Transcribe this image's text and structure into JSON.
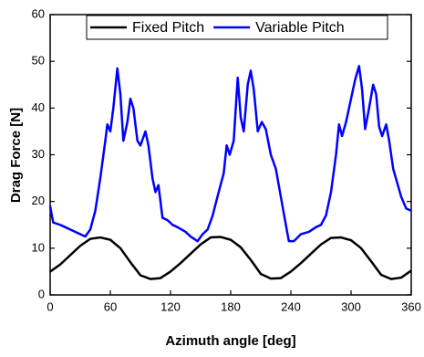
{
  "chart_data": {
    "type": "line",
    "x_label": "Azimuth angle [deg]",
    "y_label": "Drag Force [N]",
    "xlim": [
      0,
      360
    ],
    "xticks": [
      0,
      60,
      120,
      180,
      240,
      300,
      360
    ],
    "ylim": [
      0,
      60
    ],
    "yticks": [
      0,
      10,
      20,
      30,
      40,
      50,
      60
    ],
    "grid": false,
    "legend": "upper right",
    "series": [
      {
        "name": "Fixed Pitch",
        "color": "#000000",
        "x": [
          0,
          10,
          20,
          30,
          40,
          50,
          60,
          70,
          80,
          90,
          100,
          110,
          120,
          130,
          140,
          150,
          160,
          170,
          180,
          190,
          200,
          210,
          220,
          230,
          240,
          250,
          260,
          270,
          280,
          290,
          300,
          310,
          320,
          330,
          340,
          350,
          360
        ],
        "values": [
          5,
          6.5,
          8.5,
          10.5,
          12,
          12.3,
          11.8,
          10,
          7,
          4.2,
          3.4,
          3.6,
          5,
          6.8,
          8.8,
          10.8,
          12.3,
          12.4,
          11.8,
          10.2,
          7.5,
          4.5,
          3.5,
          3.6,
          5,
          6.8,
          8.8,
          10.8,
          12.2,
          12.3,
          11.7,
          10,
          7.2,
          4.3,
          3.4,
          3.7,
          5.2
        ]
      },
      {
        "name": "Variable Pitch",
        "color": "#0000ff",
        "x": [
          0,
          3,
          10,
          15,
          20,
          30,
          35,
          40,
          45,
          50,
          55,
          57,
          60,
          63,
          67,
          70,
          73,
          77,
          80,
          83,
          87,
          90,
          95,
          98,
          102,
          105,
          108,
          112,
          117,
          122,
          127,
          135,
          140,
          147,
          152,
          157,
          162,
          168,
          173,
          176,
          179,
          183,
          187,
          190,
          193,
          197,
          200,
          203,
          207,
          211,
          215,
          220,
          225,
          230,
          235,
          238,
          243,
          250,
          258,
          265,
          270,
          275,
          280,
          285,
          288,
          291,
          295,
          300,
          304,
          308,
          311,
          314,
          318,
          322,
          325,
          328,
          331,
          335,
          338,
          342,
          346,
          350,
          355,
          360
        ],
        "values": [
          19,
          15.5,
          15,
          14.5,
          14,
          13,
          12.5,
          14,
          18,
          25,
          33,
          36.5,
          35,
          40,
          48.5,
          43,
          33,
          37,
          42,
          40,
          33,
          32,
          35,
          32,
          25,
          22,
          23.5,
          16.5,
          16,
          15,
          14.5,
          13.5,
          12.5,
          11.5,
          13,
          14,
          17,
          22,
          26,
          32,
          30,
          33,
          46.5,
          38,
          35,
          45,
          48,
          44,
          35,
          37,
          35.5,
          30,
          27,
          21,
          15,
          11.5,
          11.5,
          13,
          13.5,
          14.5,
          15,
          17,
          22,
          30,
          36.5,
          34,
          37,
          42,
          46,
          49,
          44,
          35.5,
          40,
          45,
          43,
          36,
          34,
          36.5,
          33,
          27,
          24,
          21,
          18.5,
          18
        ]
      }
    ]
  }
}
